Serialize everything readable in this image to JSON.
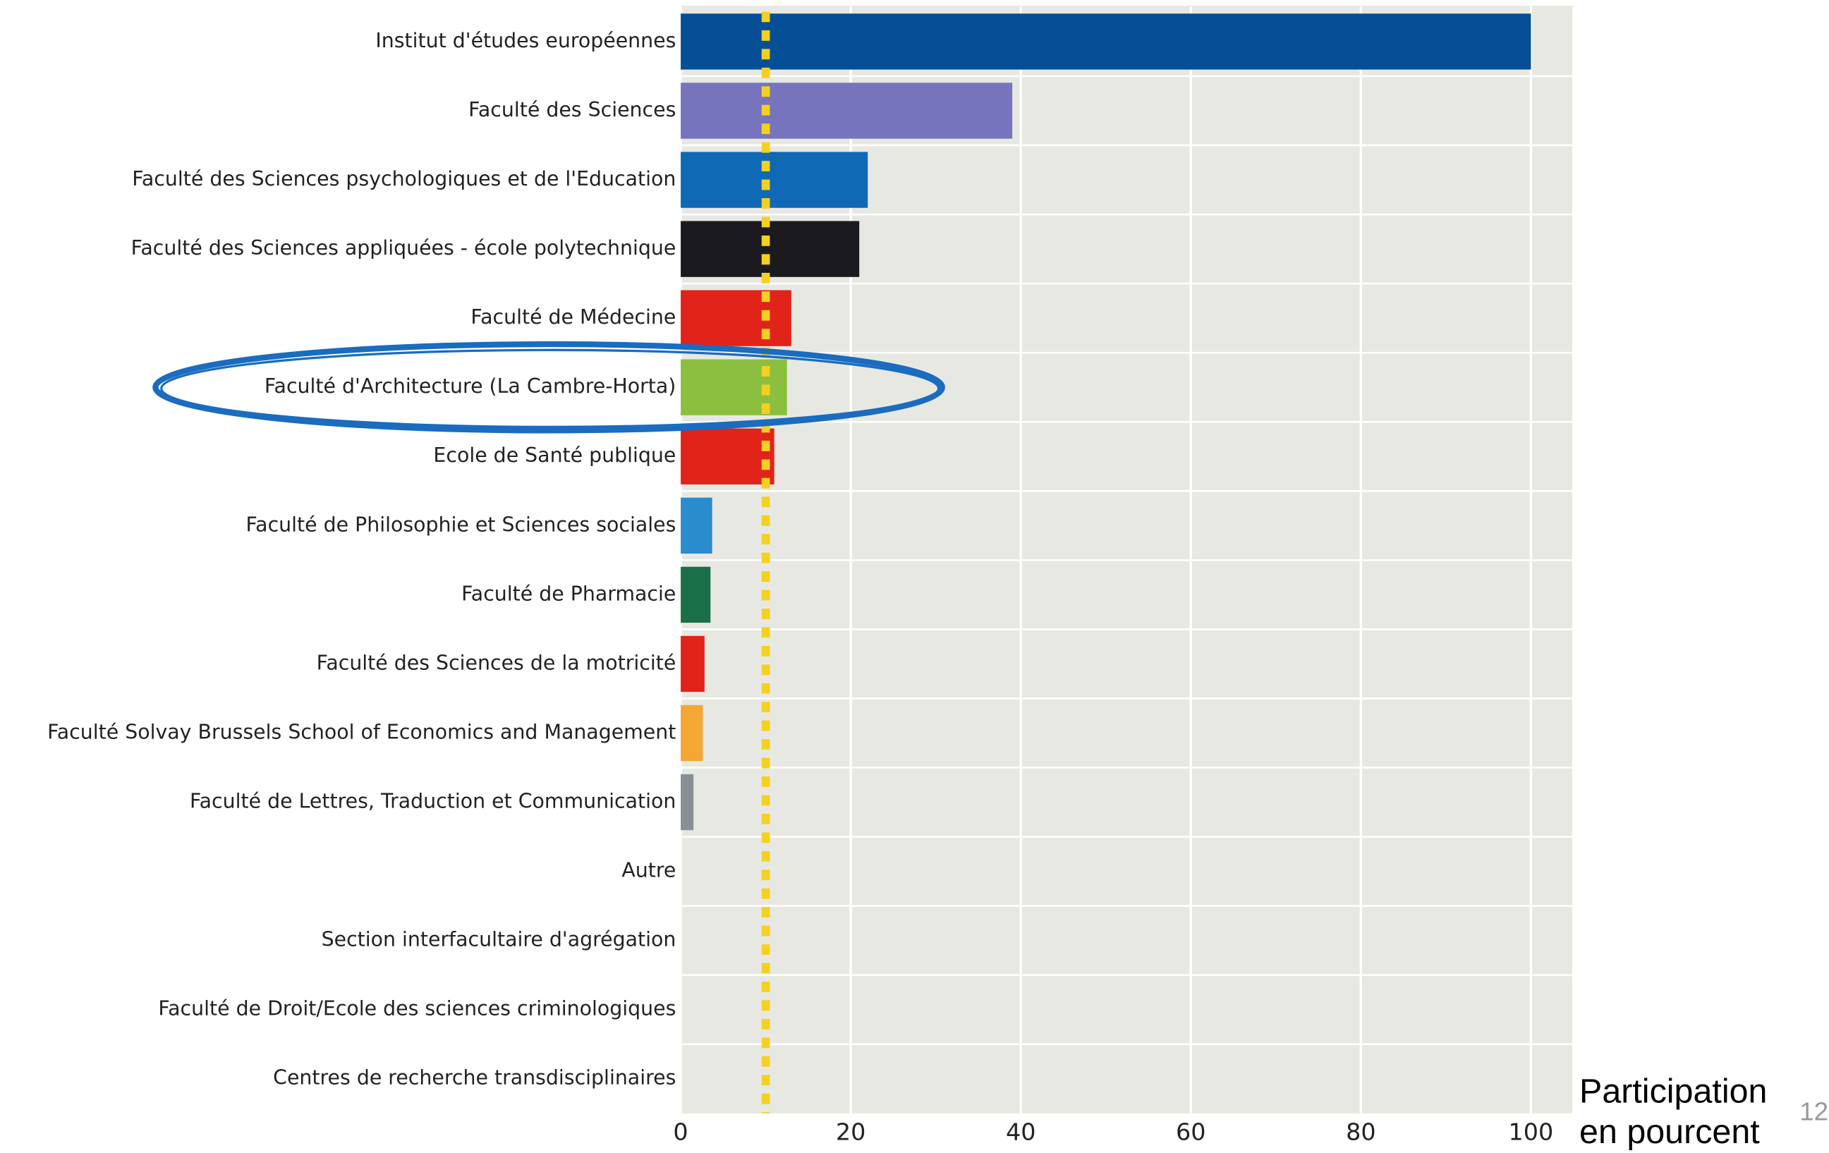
{
  "chart_data": {
    "type": "hbar",
    "categories": [
      "Institut d'études européennes",
      "Faculté des Sciences",
      "Faculté des Sciences psychologiques et de l'Education",
      "Faculté des Sciences appliquées - école polytechnique",
      "Faculté de Médecine",
      "Faculté d'Architecture (La Cambre-Horta)",
      "Ecole de Santé publique",
      "Faculté de Philosophie et Sciences sociales",
      "Faculté de Pharmacie",
      "Faculté des Sciences de la motricité",
      "Faculté Solvay Brussels School of Economics and Management",
      "Faculté de Lettres, Traduction et Communication",
      "Autre",
      "Section interfacultaire d'agrégation",
      "Faculté de Droit/Ecole des sciences criminologiques",
      "Centres de recherche transdisciplinaires"
    ],
    "values": [
      100,
      39,
      22,
      21,
      13,
      12.5,
      11,
      3.7,
      3.5,
      2.8,
      2.6,
      1.5,
      0,
      0,
      0,
      0
    ],
    "colors": [
      "#054f96",
      "#7774be",
      "#0f69b4",
      "#1b1a1e",
      "#e2231a",
      "#8cbf3f",
      "#e2231a",
      "#2a8ccc",
      "#1a7048",
      "#e2231a",
      "#f5a733",
      "#8a8f96",
      "#8a8f96",
      "#8a8f96",
      "#8a8f96",
      "#8a8f96"
    ],
    "xlim": [
      0,
      105
    ],
    "xticks": [
      0,
      20,
      40,
      60,
      80,
      100
    ],
    "grid": true,
    "reference_value": 10,
    "reference_color": "#f5d020",
    "highlight_category": 5,
    "xlabel": [
      "Participation",
      "en pourcent"
    ],
    "page_number": "12"
  }
}
